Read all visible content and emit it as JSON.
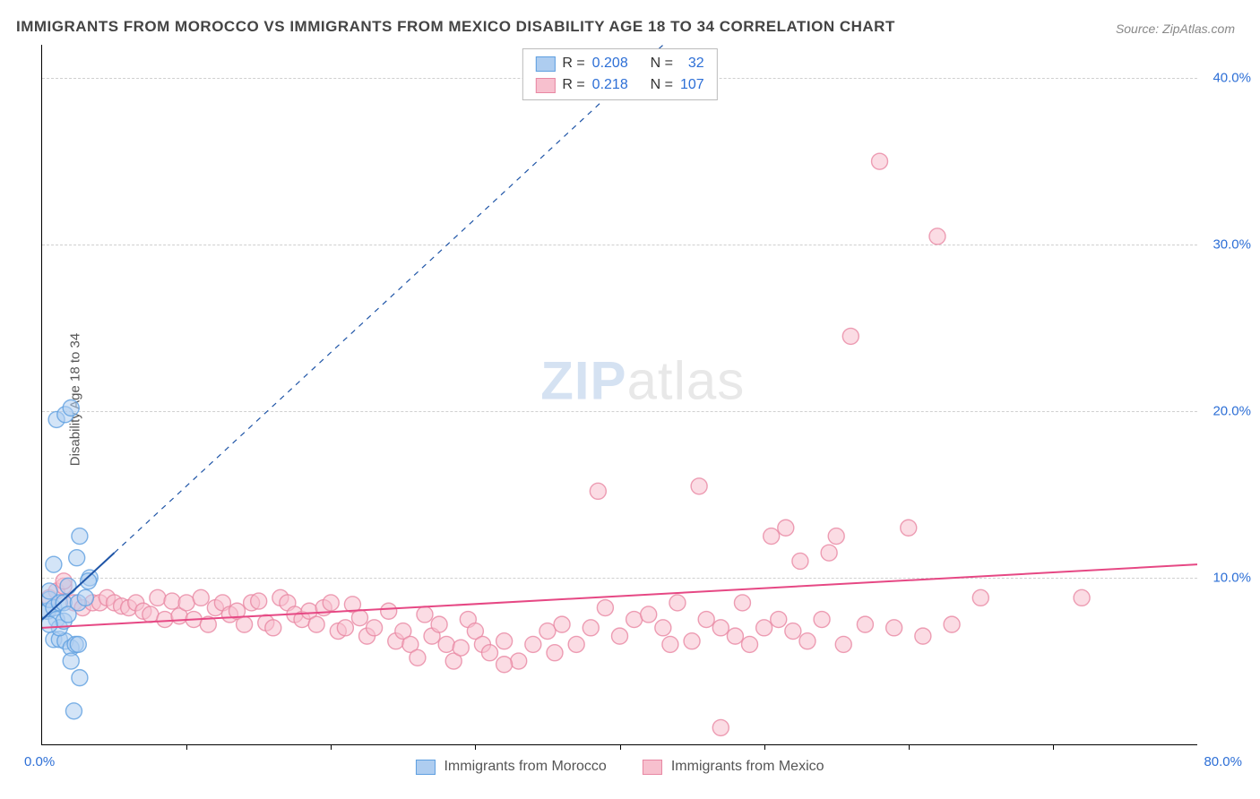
{
  "title": "IMMIGRANTS FROM MOROCCO VS IMMIGRANTS FROM MEXICO DISABILITY AGE 18 TO 34 CORRELATION CHART",
  "source": "Source: ZipAtlas.com",
  "ylabel": "Disability Age 18 to 34",
  "watermark_a": "ZIP",
  "watermark_b": "atlas",
  "chart": {
    "type": "scatter",
    "background_color": "#ffffff",
    "axis_color": "#000000",
    "grid_color": "#d0d0d0",
    "grid_dash": true,
    "xlim": [
      0,
      80
    ],
    "ylim": [
      0,
      42
    ],
    "ytick_step": 10,
    "yticks": [
      {
        "val": 10,
        "label": "10.0%"
      },
      {
        "val": 20,
        "label": "20.0%"
      },
      {
        "val": 30,
        "label": "30.0%"
      },
      {
        "val": 40,
        "label": "40.0%"
      }
    ],
    "xticks_minor_step": 10,
    "xtick_labels": [
      {
        "val": 0,
        "label": "0.0%",
        "cls": "first"
      },
      {
        "val": 80,
        "label": "80.0%",
        "cls": "last"
      }
    ],
    "marker_radius": 9,
    "marker_opacity": 0.55,
    "marker_stroke_width": 1.4,
    "series": [
      {
        "name": "Immigrants from Morocco",
        "fill": "#aecdf0",
        "stroke": "#5e9fe0",
        "R": "0.208",
        "N": "32",
        "trend": {
          "x1": 0,
          "y1": 7.5,
          "x2": 5,
          "y2": 11.5,
          "color": "#1f55a7",
          "width": 2,
          "dash": "none",
          "ext_x2": 48,
          "ext_y2": 46
        },
        "points": [
          [
            0.3,
            8.0
          ],
          [
            0.4,
            8.0
          ],
          [
            0.5,
            8.7
          ],
          [
            0.8,
            8.2
          ],
          [
            0.5,
            9.2
          ],
          [
            1.2,
            8.5
          ],
          [
            1.0,
            7.5
          ],
          [
            1.5,
            8.5
          ],
          [
            0.8,
            6.3
          ],
          [
            1.2,
            6.3
          ],
          [
            1.6,
            6.2
          ],
          [
            2.0,
            5.8
          ],
          [
            1.2,
            7.0
          ],
          [
            1.5,
            7.4
          ],
          [
            1.8,
            7.8
          ],
          [
            2.3,
            6.0
          ],
          [
            2.5,
            6.0
          ],
          [
            2.5,
            8.5
          ],
          [
            2.0,
            5.0
          ],
          [
            2.6,
            4.0
          ],
          [
            3.0,
            8.8
          ],
          [
            2.4,
            11.2
          ],
          [
            2.6,
            12.5
          ],
          [
            3.3,
            10.0
          ],
          [
            1.0,
            19.5
          ],
          [
            1.6,
            19.8
          ],
          [
            2.0,
            20.2
          ],
          [
            2.2,
            2.0
          ],
          [
            3.2,
            9.8
          ],
          [
            0.8,
            10.8
          ],
          [
            0.5,
            7.2
          ],
          [
            1.8,
            9.5
          ]
        ]
      },
      {
        "name": "Immigrants from Mexico",
        "fill": "#f7c0ce",
        "stroke": "#e887a3",
        "R": "0.218",
        "N": "107",
        "trend": {
          "x1": 0,
          "y1": 7.0,
          "x2": 80,
          "y2": 10.8,
          "color": "#e64884",
          "width": 2,
          "dash": "none"
        },
        "points": [
          [
            0.5,
            8.8
          ],
          [
            1.0,
            9.2
          ],
          [
            1.5,
            9.5
          ],
          [
            2.2,
            8.5
          ],
          [
            2.8,
            8.2
          ],
          [
            3.5,
            8.5
          ],
          [
            4.0,
            8.5
          ],
          [
            4.5,
            8.8
          ],
          [
            5.0,
            8.5
          ],
          [
            5.5,
            8.3
          ],
          [
            6.0,
            8.2
          ],
          [
            6.5,
            8.5
          ],
          [
            7.0,
            8.0
          ],
          [
            7.5,
            7.8
          ],
          [
            8.0,
            8.8
          ],
          [
            8.5,
            7.5
          ],
          [
            9.0,
            8.6
          ],
          [
            9.5,
            7.7
          ],
          [
            10.0,
            8.5
          ],
          [
            10.5,
            7.5
          ],
          [
            11.0,
            8.8
          ],
          [
            11.5,
            7.2
          ],
          [
            12.0,
            8.2
          ],
          [
            12.5,
            8.5
          ],
          [
            13.0,
            7.8
          ],
          [
            13.5,
            8.0
          ],
          [
            14.0,
            7.2
          ],
          [
            14.5,
            8.5
          ],
          [
            15.0,
            8.6
          ],
          [
            15.5,
            7.3
          ],
          [
            16.0,
            7.0
          ],
          [
            16.5,
            8.8
          ],
          [
            17.0,
            8.5
          ],
          [
            17.5,
            7.8
          ],
          [
            18.0,
            7.5
          ],
          [
            18.5,
            8.0
          ],
          [
            19.0,
            7.2
          ],
          [
            19.5,
            8.2
          ],
          [
            20.0,
            8.5
          ],
          [
            20.5,
            6.8
          ],
          [
            21.0,
            7.0
          ],
          [
            21.5,
            8.4
          ],
          [
            22.0,
            7.6
          ],
          [
            22.5,
            6.5
          ],
          [
            23.0,
            7.0
          ],
          [
            24.0,
            8.0
          ],
          [
            24.5,
            6.2
          ],
          [
            25.0,
            6.8
          ],
          [
            25.5,
            6.0
          ],
          [
            26.0,
            5.2
          ],
          [
            26.5,
            7.8
          ],
          [
            27.0,
            6.5
          ],
          [
            27.5,
            7.2
          ],
          [
            28.0,
            6.0
          ],
          [
            28.5,
            5.0
          ],
          [
            29.0,
            5.8
          ],
          [
            29.5,
            7.5
          ],
          [
            30.0,
            6.8
          ],
          [
            30.5,
            6.0
          ],
          [
            31.0,
            5.5
          ],
          [
            32.0,
            6.2
          ],
          [
            33.0,
            5.0
          ],
          [
            34.0,
            6.0
          ],
          [
            35.0,
            6.8
          ],
          [
            35.5,
            5.5
          ],
          [
            36.0,
            7.2
          ],
          [
            37.0,
            6.0
          ],
          [
            38.0,
            7.0
          ],
          [
            38.5,
            15.2
          ],
          [
            39.0,
            8.2
          ],
          [
            40.0,
            6.5
          ],
          [
            41.0,
            7.5
          ],
          [
            42.0,
            7.8
          ],
          [
            43.0,
            7.0
          ],
          [
            43.5,
            6.0
          ],
          [
            44.0,
            8.5
          ],
          [
            45.0,
            6.2
          ],
          [
            45.5,
            15.5
          ],
          [
            46.0,
            7.5
          ],
          [
            47.0,
            7.0
          ],
          [
            48.0,
            6.5
          ],
          [
            48.5,
            8.5
          ],
          [
            49.0,
            6.0
          ],
          [
            50.0,
            7.0
          ],
          [
            50.5,
            12.5
          ],
          [
            51.0,
            7.5
          ],
          [
            51.5,
            13.0
          ],
          [
            52.0,
            6.8
          ],
          [
            52.5,
            11.0
          ],
          [
            53.0,
            6.2
          ],
          [
            54.0,
            7.5
          ],
          [
            54.5,
            11.5
          ],
          [
            55.0,
            12.5
          ],
          [
            55.5,
            6.0
          ],
          [
            56.0,
            24.5
          ],
          [
            57.0,
            7.2
          ],
          [
            58.0,
            35.0
          ],
          [
            59.0,
            7.0
          ],
          [
            60.0,
            13.0
          ],
          [
            61.0,
            6.5
          ],
          [
            62.0,
            30.5
          ],
          [
            63.0,
            7.2
          ],
          [
            65.0,
            8.8
          ],
          [
            72.0,
            8.8
          ],
          [
            47.0,
            1.0
          ],
          [
            32.0,
            4.8
          ],
          [
            1.5,
            9.8
          ]
        ]
      }
    ]
  },
  "legend_top": {
    "label_R": "R =",
    "label_N": "N ="
  },
  "legend_bottom_order": [
    0,
    1
  ]
}
